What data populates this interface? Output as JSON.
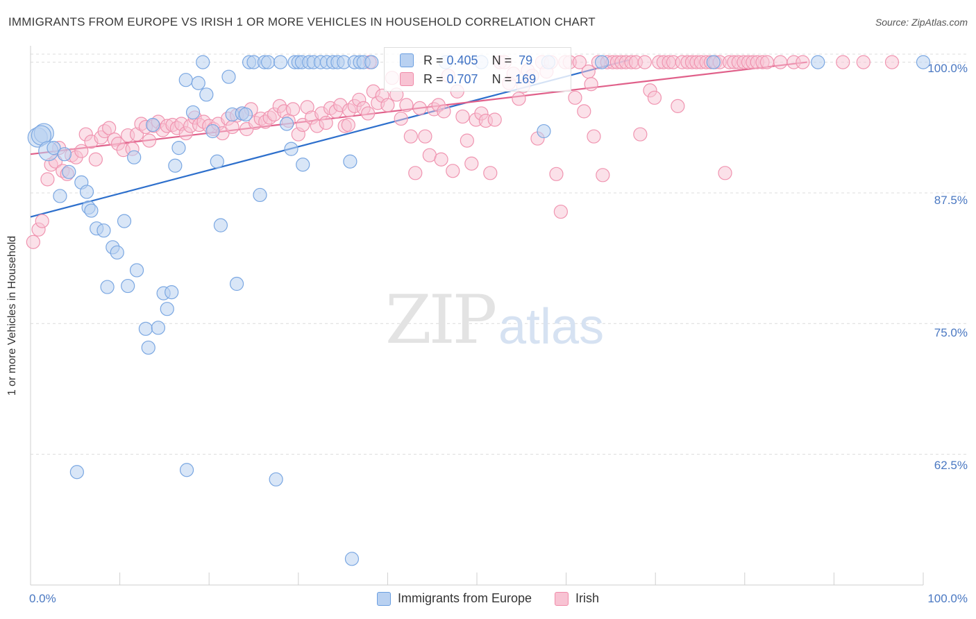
{
  "title": "IMMIGRANTS FROM EUROPE VS IRISH 1 OR MORE VEHICLES IN HOUSEHOLD CORRELATION CHART",
  "source": "Source: ZipAtlas.com",
  "watermark": {
    "zip": "ZIP",
    "atlas": "atlas"
  },
  "colors": {
    "blue": "#6a9ee0",
    "blue_fill": "#b9d1f1",
    "pink": "#f08aa8",
    "pink_fill": "#f8c3d3",
    "blue_line": "#2d6fcc",
    "pink_line": "#e0608a",
    "tick_text": "#4a78c2"
  },
  "stats": [
    {
      "r_label": "R = ",
      "r": "0.405",
      "n_label": "N = ",
      "n": "79"
    },
    {
      "r_label": "R = ",
      "r": "0.707",
      "n_label": "N = ",
      "n": "169"
    }
  ],
  "legend": [
    "Immigrants from Europe",
    "Irish"
  ],
  "chart_data": {
    "type": "scatter",
    "title": "IMMIGRANTS FROM EUROPE VS IRISH 1 OR MORE VEHICLES IN HOUSEHOLD CORRELATION CHART",
    "xlabel": "",
    "ylabel": "1 or more Vehicles in Household",
    "xlim": [
      0,
      100
    ],
    "ylim": [
      50,
      101.3
    ],
    "x_tick_labels": [
      "0.0%",
      "100.0%"
    ],
    "y_ticks": [
      62.5,
      75.0,
      87.5,
      100.0
    ],
    "y_tick_labels": [
      "62.5%",
      "75.0%",
      "87.5%",
      "100.0%"
    ],
    "grid": true,
    "series": [
      {
        "name": "Immigrants from Europe",
        "trend": {
          "x": [
            0,
            67
          ],
          "y": [
            85.2,
            100.2
          ]
        },
        "points": [
          [
            0.8,
            92.8
          ],
          [
            1.5,
            93.2
          ],
          [
            1.2,
            93.0
          ],
          [
            2.0,
            91.5
          ],
          [
            2.6,
            91.8
          ],
          [
            3.3,
            87.2
          ],
          [
            3.8,
            91.2
          ],
          [
            4.3,
            89.5
          ],
          [
            5.7,
            88.5
          ],
          [
            6.3,
            87.6
          ],
          [
            6.5,
            86.1
          ],
          [
            6.8,
            85.8
          ],
          [
            7.4,
            84.1
          ],
          [
            8.2,
            83.9
          ],
          [
            8.6,
            78.5
          ],
          [
            9.2,
            82.3
          ],
          [
            9.7,
            81.8
          ],
          [
            10.5,
            84.8
          ],
          [
            10.9,
            78.6
          ],
          [
            11.6,
            90.9
          ],
          [
            11.9,
            80.1
          ],
          [
            12.9,
            74.5
          ],
          [
            13.2,
            72.7
          ],
          [
            13.7,
            94.0
          ],
          [
            14.3,
            74.6
          ],
          [
            14.9,
            77.9
          ],
          [
            15.3,
            76.4
          ],
          [
            15.8,
            78.0
          ],
          [
            16.2,
            90.1
          ],
          [
            16.6,
            91.8
          ],
          [
            17.4,
            98.3
          ],
          [
            18.2,
            95.2
          ],
          [
            18.8,
            98.0
          ],
          [
            19.3,
            100.0
          ],
          [
            19.7,
            96.9
          ],
          [
            20.4,
            93.4
          ],
          [
            20.9,
            90.5
          ],
          [
            21.3,
            84.4
          ],
          [
            22.2,
            98.6
          ],
          [
            22.6,
            95.0
          ],
          [
            23.1,
            78.8
          ],
          [
            23.7,
            95.1
          ],
          [
            24.1,
            95.0
          ],
          [
            24.5,
            100.0
          ],
          [
            25.0,
            100.0
          ],
          [
            25.7,
            87.3
          ],
          [
            26.2,
            100.0
          ],
          [
            26.6,
            100.0
          ],
          [
            28.0,
            100.0
          ],
          [
            28.7,
            94.1
          ],
          [
            29.2,
            91.7
          ],
          [
            29.6,
            100.0
          ],
          [
            30.0,
            100.0
          ],
          [
            30.4,
            100.0
          ],
          [
            31.2,
            100.0
          ],
          [
            31.7,
            100.0
          ],
          [
            32.5,
            100.0
          ],
          [
            33.2,
            100.0
          ],
          [
            33.9,
            100.0
          ],
          [
            34.4,
            100.0
          ],
          [
            35.1,
            100.0
          ],
          [
            35.8,
            90.5
          ],
          [
            36.3,
            100.0
          ],
          [
            36.9,
            100.0
          ],
          [
            37.3,
            100.0
          ],
          [
            38.2,
            100.0
          ],
          [
            5.2,
            60.8
          ],
          [
            17.5,
            61.0
          ],
          [
            27.5,
            60.1
          ],
          [
            36.0,
            52.5
          ],
          [
            30.5,
            90.2
          ],
          [
            46.5,
            100.0
          ],
          [
            50.5,
            100.0
          ],
          [
            57.5,
            93.4
          ],
          [
            58.0,
            100.0
          ],
          [
            64.0,
            100.0
          ],
          [
            76.5,
            100.0
          ],
          [
            88.2,
            100.0
          ],
          [
            100.0,
            100.0
          ]
        ]
      },
      {
        "name": "Irish",
        "trend": {
          "x": [
            0,
            87
          ],
          "y": [
            91.2,
            100.0
          ]
        },
        "points": [
          [
            0.3,
            82.8
          ],
          [
            0.9,
            84.0
          ],
          [
            1.3,
            84.8
          ],
          [
            1.9,
            88.8
          ],
          [
            2.3,
            90.2
          ],
          [
            2.8,
            90.5
          ],
          [
            3.2,
            91.8
          ],
          [
            3.6,
            89.6
          ],
          [
            4.1,
            89.3
          ],
          [
            4.6,
            91.1
          ],
          [
            5.1,
            90.9
          ],
          [
            5.7,
            91.5
          ],
          [
            6.2,
            93.1
          ],
          [
            6.8,
            92.4
          ],
          [
            7.3,
            90.7
          ],
          [
            7.9,
            92.8
          ],
          [
            8.3,
            93.4
          ],
          [
            8.8,
            93.7
          ],
          [
            9.4,
            92.6
          ],
          [
            9.8,
            92.2
          ],
          [
            10.4,
            91.6
          ],
          [
            10.9,
            93.0
          ],
          [
            11.4,
            91.7
          ],
          [
            11.9,
            93.1
          ],
          [
            12.4,
            94.1
          ],
          [
            12.9,
            93.8
          ],
          [
            13.3,
            92.5
          ],
          [
            13.8,
            93.9
          ],
          [
            14.3,
            94.3
          ],
          [
            14.8,
            93.5
          ],
          [
            15.3,
            93.9
          ],
          [
            15.9,
            94.0
          ],
          [
            16.4,
            93.7
          ],
          [
            16.9,
            94.1
          ],
          [
            17.4,
            93.2
          ],
          [
            17.9,
            93.9
          ],
          [
            18.4,
            94.7
          ],
          [
            18.9,
            94.0
          ],
          [
            19.4,
            94.3
          ],
          [
            20.0,
            93.9
          ],
          [
            20.5,
            93.6
          ],
          [
            21.0,
            94.1
          ],
          [
            21.5,
            93.2
          ],
          [
            22.1,
            94.6
          ],
          [
            22.6,
            93.8
          ],
          [
            23.1,
            94.9
          ],
          [
            23.7,
            95.1
          ],
          [
            24.2,
            93.6
          ],
          [
            24.7,
            95.5
          ],
          [
            25.2,
            94.2
          ],
          [
            25.8,
            94.6
          ],
          [
            26.3,
            94.3
          ],
          [
            26.8,
            94.7
          ],
          [
            27.3,
            95.0
          ],
          [
            27.9,
            95.8
          ],
          [
            28.4,
            95.3
          ],
          [
            28.9,
            94.4
          ],
          [
            29.4,
            95.5
          ],
          [
            30.0,
            93.1
          ],
          [
            30.5,
            94.0
          ],
          [
            31.0,
            95.7
          ],
          [
            31.5,
            94.7
          ],
          [
            32.1,
            93.9
          ],
          [
            32.6,
            95.1
          ],
          [
            33.1,
            94.2
          ],
          [
            33.6,
            95.6
          ],
          [
            34.2,
            95.3
          ],
          [
            34.7,
            95.9
          ],
          [
            35.2,
            93.9
          ],
          [
            35.7,
            95.4
          ],
          [
            36.3,
            95.8
          ],
          [
            36.8,
            96.4
          ],
          [
            37.3,
            95.6
          ],
          [
            37.8,
            95.1
          ],
          [
            38.4,
            97.2
          ],
          [
            38.9,
            96.1
          ],
          [
            39.4,
            96.8
          ],
          [
            40.0,
            95.9
          ],
          [
            40.5,
            98.5
          ],
          [
            41.0,
            96.9
          ],
          [
            41.5,
            94.6
          ],
          [
            42.1,
            95.9
          ],
          [
            42.6,
            92.9
          ],
          [
            43.1,
            89.4
          ],
          [
            43.6,
            95.6
          ],
          [
            44.2,
            92.9
          ],
          [
            44.7,
            91.1
          ],
          [
            45.2,
            95.5
          ],
          [
            45.7,
            95.9
          ],
          [
            46.3,
            95.3
          ],
          [
            46.8,
            98.7
          ],
          [
            47.3,
            89.6
          ],
          [
            47.8,
            97.2
          ],
          [
            48.4,
            94.8
          ],
          [
            48.9,
            92.5
          ],
          [
            49.4,
            90.3
          ],
          [
            49.9,
            94.5
          ],
          [
            50.5,
            95.1
          ],
          [
            51.0,
            94.4
          ],
          [
            51.5,
            89.4
          ],
          [
            52.0,
            94.5
          ],
          [
            52.6,
            100.0
          ],
          [
            53.1,
            100.0
          ],
          [
            53.6,
            98.0
          ],
          [
            54.1,
            98.9
          ],
          [
            54.7,
            96.5
          ],
          [
            55.2,
            97.7
          ],
          [
            55.7,
            99.2
          ],
          [
            56.2,
            98.7
          ],
          [
            56.8,
            92.7
          ],
          [
            57.3,
            100.0
          ],
          [
            57.8,
            99.1
          ],
          [
            58.3,
            100.0
          ],
          [
            58.9,
            89.3
          ],
          [
            59.4,
            85.7
          ],
          [
            59.9,
            100.0
          ],
          [
            60.4,
            100.0
          ],
          [
            61.0,
            96.6
          ],
          [
            61.5,
            100.0
          ],
          [
            62.0,
            95.3
          ],
          [
            62.5,
            99.1
          ],
          [
            63.1,
            92.9
          ],
          [
            63.6,
            100.0
          ],
          [
            64.1,
            89.2
          ],
          [
            64.6,
            100.0
          ],
          [
            65.2,
            100.0
          ],
          [
            65.7,
            100.0
          ],
          [
            66.2,
            100.0
          ],
          [
            66.7,
            100.0
          ],
          [
            67.3,
            100.0
          ],
          [
            67.8,
            100.0
          ],
          [
            68.3,
            93.1
          ],
          [
            68.8,
            100.0
          ],
          [
            69.4,
            97.3
          ],
          [
            69.9,
            96.6
          ],
          [
            70.4,
            100.0
          ],
          [
            70.9,
            100.0
          ],
          [
            71.5,
            100.0
          ],
          [
            72.0,
            100.0
          ],
          [
            72.5,
            95.8
          ],
          [
            73.0,
            100.0
          ],
          [
            73.6,
            100.0
          ],
          [
            74.1,
            100.0
          ],
          [
            74.6,
            100.0
          ],
          [
            75.1,
            100.0
          ],
          [
            75.7,
            100.0
          ],
          [
            76.2,
            100.0
          ],
          [
            76.7,
            100.0
          ],
          [
            77.2,
            100.0
          ],
          [
            77.8,
            89.4
          ],
          [
            78.3,
            100.0
          ],
          [
            78.8,
            100.0
          ],
          [
            79.3,
            100.0
          ],
          [
            79.9,
            100.0
          ],
          [
            80.4,
            100.0
          ],
          [
            80.9,
            100.0
          ],
          [
            81.4,
            100.0
          ],
          [
            82.0,
            100.0
          ],
          [
            82.5,
            100.0
          ],
          [
            84.0,
            100.0
          ],
          [
            85.5,
            100.0
          ],
          [
            86.5,
            100.0
          ],
          [
            91.0,
            100.0
          ],
          [
            93.3,
            100.0
          ],
          [
            96.5,
            100.0
          ],
          [
            35.6,
            94.0
          ],
          [
            46.0,
            90.7
          ],
          [
            62.8,
            97.9
          ],
          [
            38.0,
            100.0
          ]
        ]
      }
    ]
  }
}
